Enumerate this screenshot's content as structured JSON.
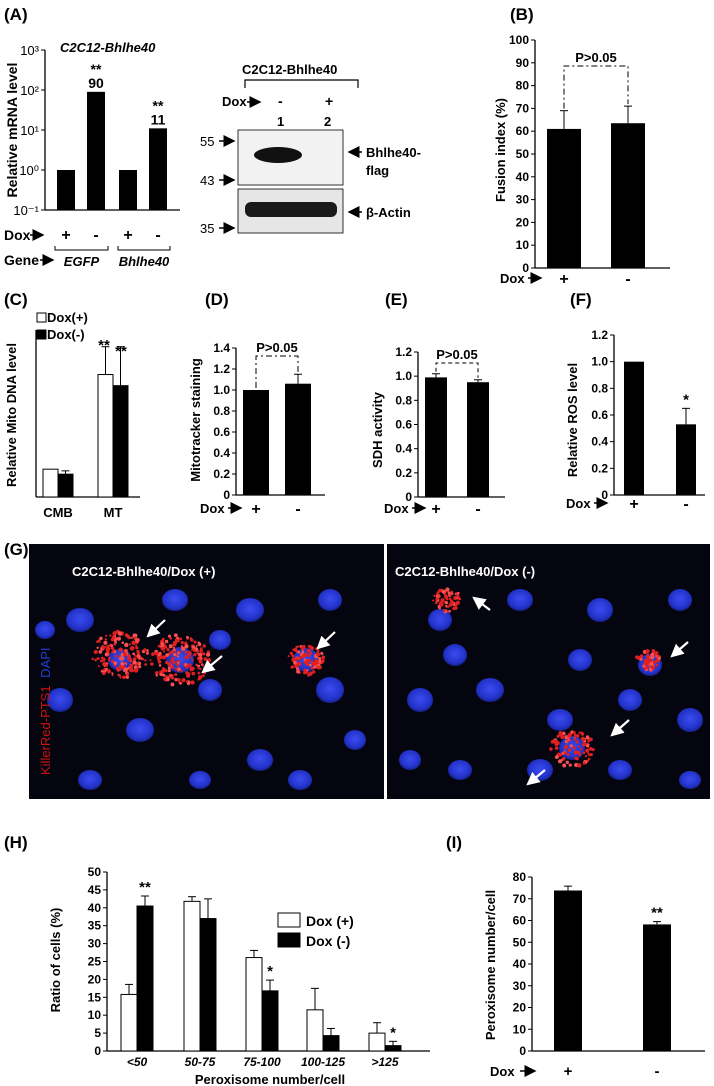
{
  "panel_labels": {
    "A": "(A)",
    "B": "(B)",
    "C": "(C)",
    "D": "(D)",
    "E": "(E)",
    "F": "(F)",
    "G": "(G)",
    "H": "(H)",
    "I": "(I)"
  },
  "dox_label": "Dox",
  "gene_label": "Gene",
  "plus": "+",
  "minus": "-",
  "chart_data": [
    {
      "id": "A_qpcr",
      "type": "bar",
      "title": "C2C12-Bhlhe40",
      "ylabel": "Relative mRNA level",
      "yscale": "log",
      "ylim": [
        0.1,
        1000
      ],
      "yticks": [
        "10⁻¹",
        "10⁰",
        "10¹",
        "10²",
        "10³"
      ],
      "categories": [
        "+",
        "-",
        "+",
        "-"
      ],
      "groups": [
        "EGFP",
        "Bhlhe40"
      ],
      "values": [
        1,
        90,
        1,
        11
      ],
      "annotations": [
        {
          "index": 1,
          "sig": "**",
          "value": "90"
        },
        {
          "index": 3,
          "sig": "**",
          "value": "11"
        }
      ]
    },
    {
      "id": "A_western",
      "type": "table",
      "title": "C2C12-Bhlhe40",
      "lanes": [
        {
          "dox": "-",
          "lane": "1"
        },
        {
          "dox": "+",
          "lane": "2"
        }
      ],
      "markers": [
        "55",
        "43",
        "35"
      ],
      "bands": [
        "Bhlhe40-\nflag",
        "β-Actin"
      ]
    },
    {
      "id": "B_fusion",
      "type": "bar",
      "ylabel": "Fusion index (%)",
      "ylim": [
        0,
        100
      ],
      "yticks": [
        "0",
        "10",
        "20",
        "30",
        "40",
        "50",
        "60",
        "70",
        "80",
        "90",
        "100"
      ],
      "categories": [
        "+",
        "-"
      ],
      "values": [
        61,
        63.5
      ],
      "errors": [
        8,
        7.5
      ],
      "comparison": "P>0.05"
    },
    {
      "id": "C_mito",
      "type": "bar",
      "ylabel": "Relative Mito DNA level",
      "ylim": [
        0,
        6
      ],
      "categories": [
        "CMB",
        "MT"
      ],
      "series": [
        {
          "name": "Dox(+)",
          "values": [
            1.0,
            4.4
          ],
          "errors": [
            0,
            1.0
          ]
        },
        {
          "name": "Dox(-)",
          "values": [
            0.82,
            4.0
          ],
          "errors": [
            0.12,
            1.4
          ]
        }
      ],
      "annotations": [
        "**",
        "**"
      ]
    },
    {
      "id": "D_mitotracker",
      "type": "bar",
      "ylabel": "Mitotracker staining",
      "ylim": [
        0,
        1.4
      ],
      "yticks": [
        "0",
        "0.2",
        "0.4",
        "0.6",
        "0.8",
        "1.0",
        "1.2",
        "1.4"
      ],
      "categories": [
        "+",
        "-"
      ],
      "values": [
        1.0,
        1.06
      ],
      "errors": [
        0,
        0.09
      ],
      "comparison": "P>0.05"
    },
    {
      "id": "E_sdh",
      "type": "bar",
      "ylabel": "SDH activity",
      "ylim": [
        0,
        1.2
      ],
      "yticks": [
        "0",
        "0.2",
        "0.4",
        "0.6",
        "0.8",
        "1.0",
        "1.2"
      ],
      "categories": [
        "+",
        "-"
      ],
      "values": [
        0.99,
        0.95
      ],
      "errors": [
        0.03,
        0.02
      ],
      "comparison": "P>0.05"
    },
    {
      "id": "F_ros",
      "type": "bar",
      "ylabel": "Relative ROS level",
      "ylim": [
        0,
        1.2
      ],
      "yticks": [
        "0",
        "0.2",
        "0.4",
        "0.6",
        "0.8",
        "1.0",
        "1.2"
      ],
      "categories": [
        "+",
        "-"
      ],
      "values": [
        1.0,
        0.53
      ],
      "errors": [
        0,
        0.12
      ],
      "annotations": [
        "",
        "*"
      ]
    },
    {
      "id": "H_distribution",
      "type": "bar",
      "ylabel": "Ratio of cells (%)",
      "xlabel": "Peroxisome number/cell",
      "ylim": [
        0,
        50
      ],
      "yticks": [
        "0",
        "5",
        "10",
        "15",
        "20",
        "25",
        "30",
        "35",
        "40",
        "45",
        "50"
      ],
      "categories": [
        "<50",
        "50-75",
        "75-100",
        "100-125",
        ">125"
      ],
      "series": [
        {
          "name": "Dox (+)",
          "values": [
            15.8,
            41.8,
            26.1,
            11.5,
            5.0
          ],
          "errors": [
            2.8,
            1.3,
            2.0,
            6.0,
            2.9
          ]
        },
        {
          "name": "Dox (-)",
          "values": [
            40.5,
            37.0,
            16.8,
            4.3,
            1.5
          ],
          "errors": [
            2.8,
            5.5,
            3.0,
            2.0,
            1.2
          ]
        }
      ],
      "annotations": [
        "**",
        "",
        "*",
        "",
        "*"
      ]
    },
    {
      "id": "I_peroxisome",
      "type": "bar",
      "ylabel": "Peroxisome number/cell",
      "ylim": [
        0,
        80
      ],
      "yticks": [
        "0",
        "10",
        "20",
        "30",
        "40",
        "50",
        "60",
        "70",
        "80"
      ],
      "categories": [
        "+",
        "-"
      ],
      "values": [
        73.8,
        58.2
      ],
      "errors": [
        2.0,
        1.3
      ],
      "annotations": [
        "",
        "**"
      ]
    }
  ],
  "microscopy": {
    "stain_red": "KillerRed-PTS1",
    "stain_plus": "+",
    "stain_blue": "DAPI",
    "left_title": "C2C12-Bhlhe40/Dox (+)",
    "right_title": "C2C12-Bhlhe40/Dox (-)"
  }
}
